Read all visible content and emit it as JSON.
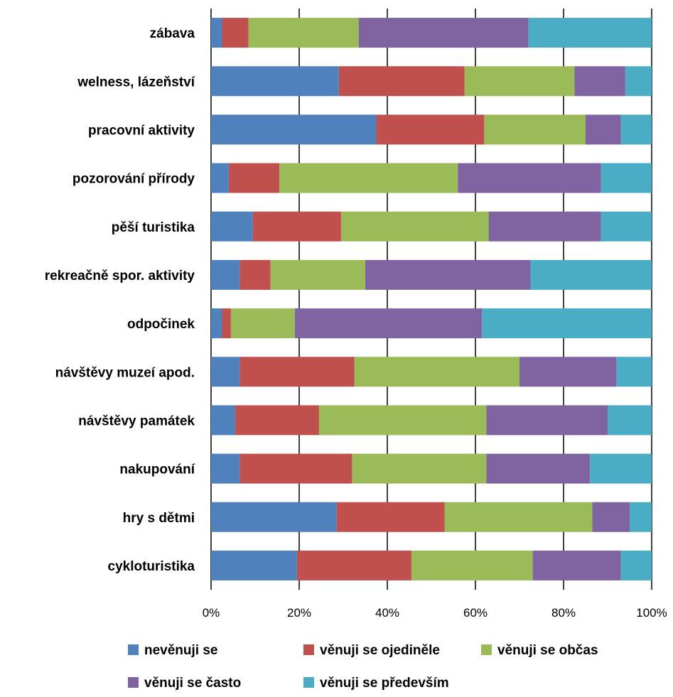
{
  "chart_data": {
    "type": "bar",
    "orientation": "horizontal",
    "stacking": "percent",
    "categories": [
      "zábava",
      "welness, lázeňství",
      "pracovní aktivity",
      "pozorování přírody",
      "pěší turistika",
      "rekreačně spor. aktivity",
      "odpočinek",
      "návštěvy muzeí apod.",
      "návštěvy památek",
      "nakupování",
      "hry s dětmi",
      "cykloturistika"
    ],
    "series": [
      {
        "name": "nevěnuji se",
        "color": "#4f81bd",
        "values": [
          2.5,
          29,
          37.5,
          4,
          9.5,
          6.5,
          2.5,
          6.5,
          5.5,
          6.5,
          28.5,
          19.5
        ]
      },
      {
        "name": "věnuji se ojediněle",
        "color": "#c0504d",
        "values": [
          6,
          28.5,
          24.5,
          11.5,
          20,
          7,
          2,
          26,
          19,
          25.5,
          24.5,
          26
        ]
      },
      {
        "name": "věnuji se občas",
        "color": "#9bbb59",
        "values": [
          25,
          25,
          23,
          40.5,
          33.5,
          21.5,
          14.5,
          37.5,
          38,
          30.5,
          33.5,
          27.5
        ]
      },
      {
        "name": "věnuji se často",
        "color": "#8064a2",
        "values": [
          38.5,
          11.5,
          8,
          32.5,
          25.5,
          37.5,
          42.5,
          22,
          27.5,
          23.5,
          8.5,
          20
        ]
      },
      {
        "name": "věnuji se především",
        "color": "#4bacc6",
        "values": [
          28,
          6,
          7,
          11.5,
          11.5,
          27.5,
          38.5,
          8,
          10,
          14,
          5,
          7
        ]
      }
    ],
    "x_ticks": [
      "0%",
      "20%",
      "40%",
      "60%",
      "80%",
      "100%"
    ],
    "xlim": [
      0,
      100
    ],
    "grid": "vertical",
    "legend": "bottom",
    "title": "",
    "xlabel": "",
    "ylabel": ""
  }
}
